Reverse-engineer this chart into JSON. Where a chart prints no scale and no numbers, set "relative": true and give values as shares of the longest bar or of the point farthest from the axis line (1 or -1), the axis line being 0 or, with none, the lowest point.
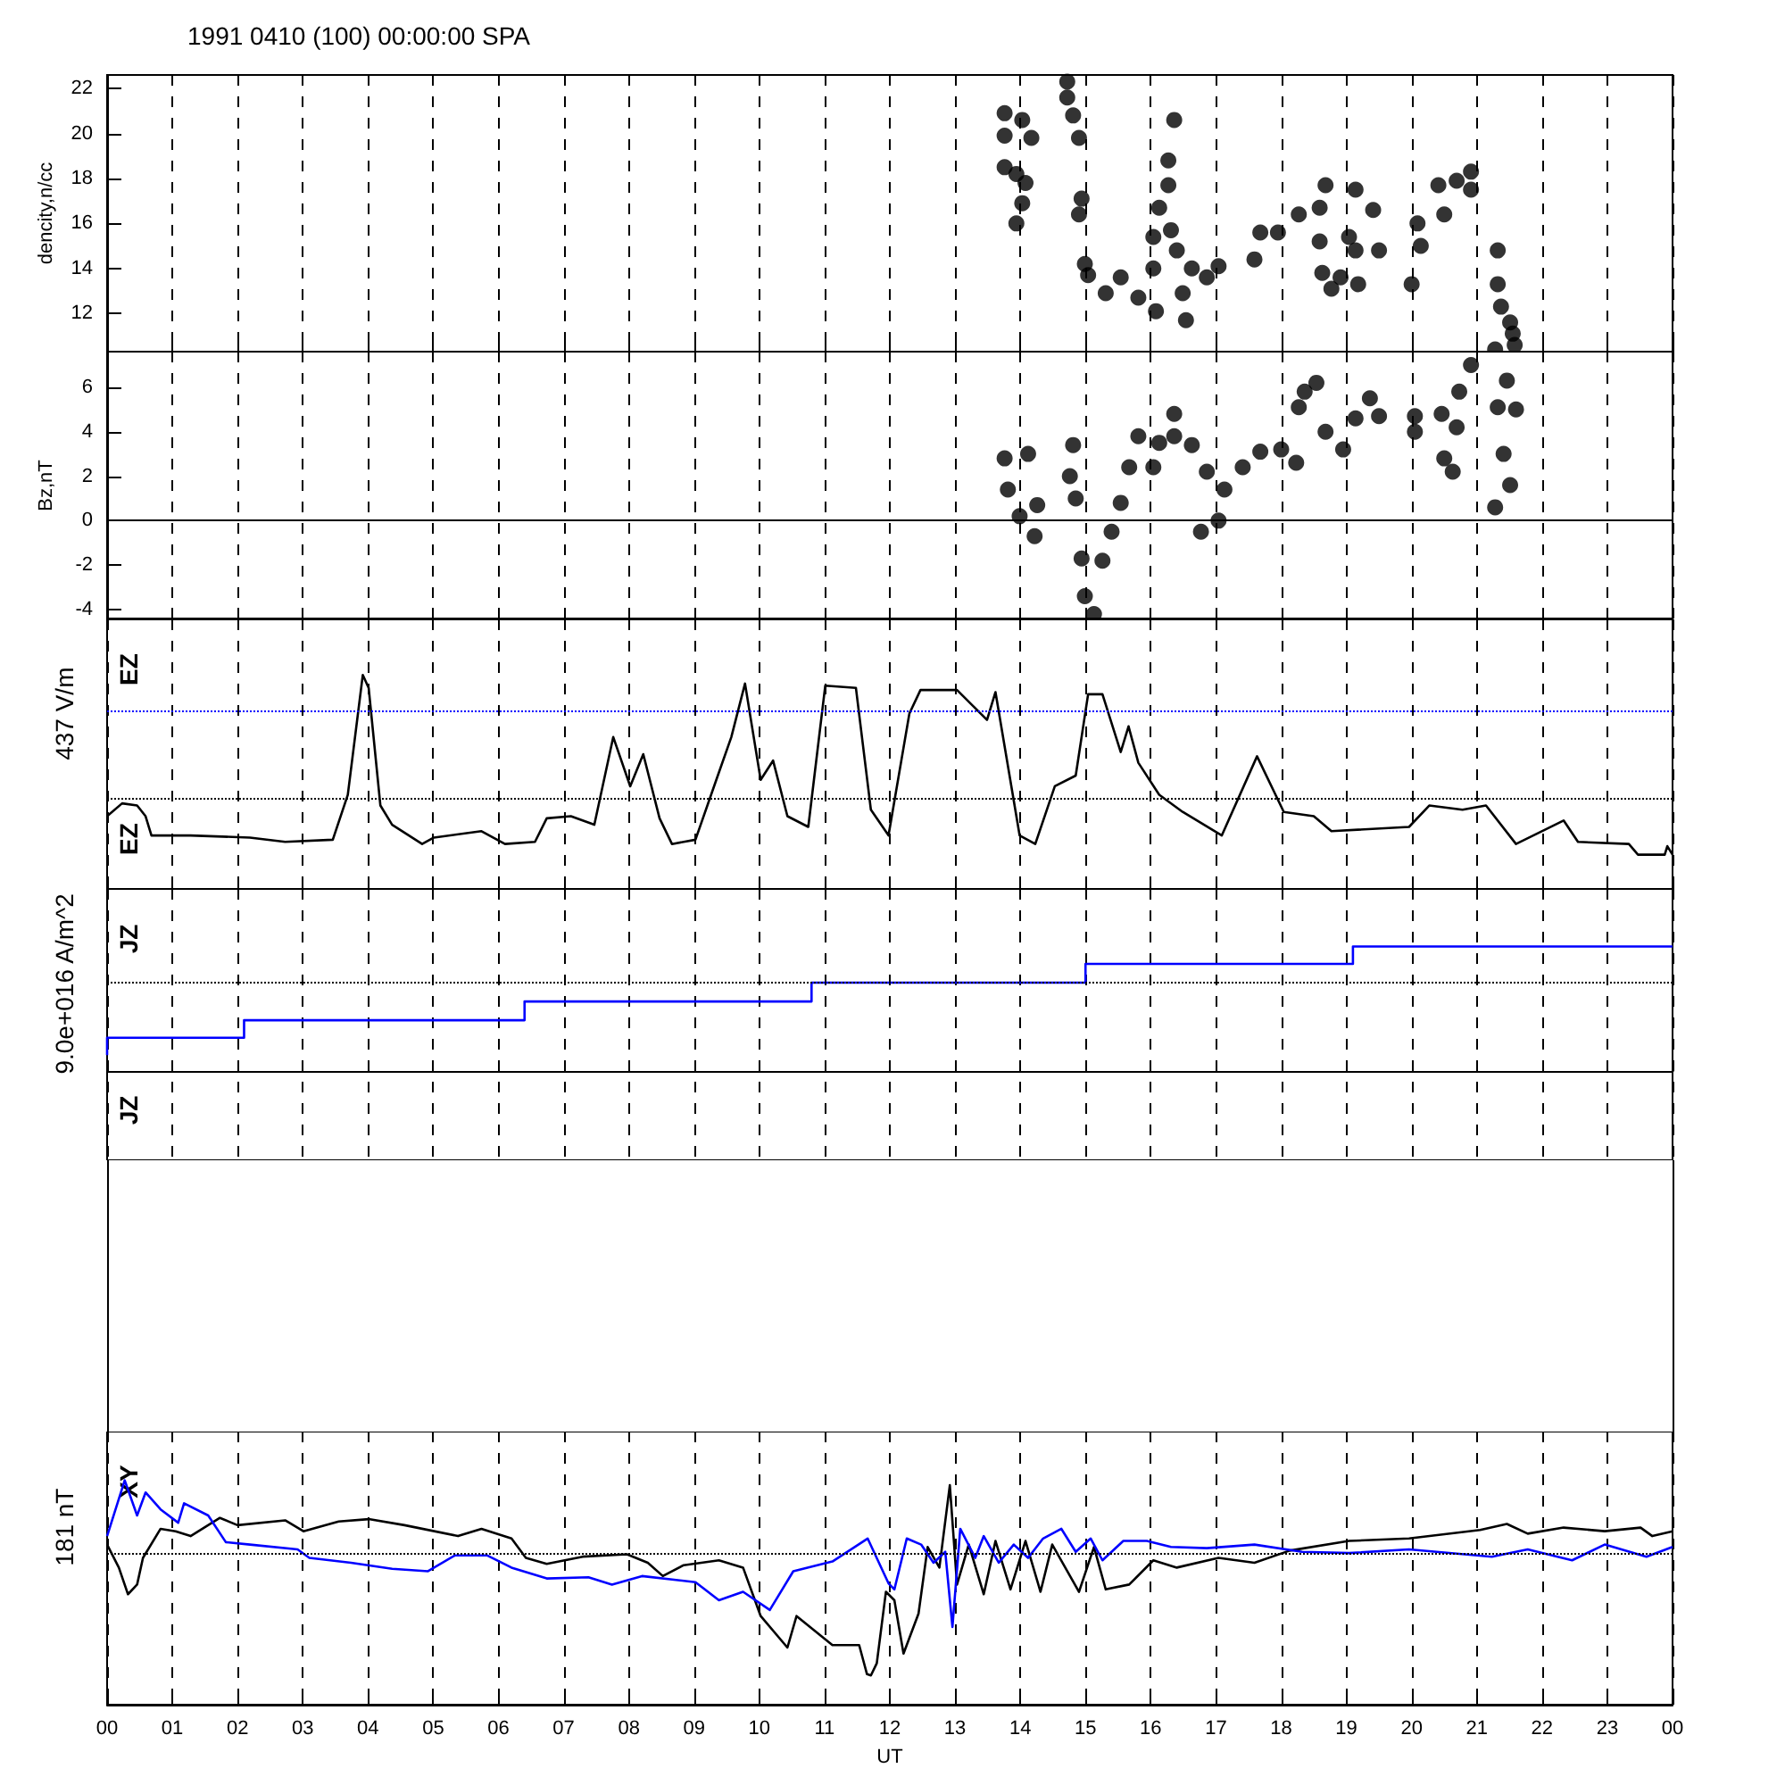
{
  "chart_data": [
    {
      "type": "scatter",
      "title": "1991 0410 (100) 00:00:00 SPA",
      "ylabel": "dencity,n/cc",
      "marker": "circle",
      "grid": "x",
      "tick_labels": "y",
      "xlim": [
        0,
        24
      ],
      "xticks": [
        {
          "value": 0,
          "label": null
        },
        {
          "value": 1,
          "label": null
        },
        {
          "value": 2,
          "label": null
        },
        {
          "value": 3,
          "label": null
        },
        {
          "value": 4,
          "label": null
        },
        {
          "value": 5,
          "label": null
        },
        {
          "value": 6,
          "label": null
        },
        {
          "value": 7,
          "label": null
        },
        {
          "value": 8,
          "label": null
        },
        {
          "value": 9,
          "label": null
        },
        {
          "value": 10,
          "label": null
        },
        {
          "value": 11,
          "label": null
        },
        {
          "value": 12,
          "label": null
        },
        {
          "value": 13,
          "label": null
        },
        {
          "value": 14,
          "label": null
        },
        {
          "value": 15,
          "label": null
        },
        {
          "value": 16,
          "label": null
        },
        {
          "value": 17,
          "label": null
        },
        {
          "value": 18,
          "label": null
        },
        {
          "value": 19,
          "label": null
        },
        {
          "value": 20,
          "label": null
        },
        {
          "value": 21,
          "label": null
        },
        {
          "value": 22,
          "label": null
        },
        {
          "value": 23,
          "label": null
        },
        {
          "value": 24,
          "label": null
        }
      ],
      "ylim": [
        10.3,
        22.6
      ],
      "yticks": [
        12,
        14,
        16,
        18,
        20,
        22
      ],
      "x": [
        13.76,
        14.03,
        14.17,
        13.76,
        13.76,
        13.94,
        14.08,
        14.03,
        13.94,
        14.72,
        14.72,
        14.81,
        14.9,
        14.94,
        14.9,
        14.99,
        15.04,
        15.31,
        15.54,
        15.81,
        16.08,
        16.04,
        16.04,
        16.13,
        16.27,
        16.27,
        16.36,
        16.31,
        16.4,
        16.63,
        16.49,
        16.54,
        16.86,
        17.04,
        17.59,
        17.68,
        17.95,
        18.27,
        18.68,
        18.59,
        18.59,
        18.63,
        18.77,
        18.91,
        19.14,
        19.04,
        19.14,
        19.18,
        19.41,
        19.5,
        20.0,
        20.09,
        20.14,
        20.41,
        20.5,
        20.69,
        20.91,
        20.91,
        21.32,
        21.32,
        21.37,
        21.51,
        21.55,
        21.28,
        21.58
      ],
      "series": [
        {
          "color": "#000000",
          "values": [
            20.9,
            20.6,
            19.8,
            19.9,
            18.5,
            18.2,
            17.8,
            16.9,
            16.0,
            22.3,
            21.6,
            20.8,
            19.8,
            17.1,
            16.4,
            14.2,
            13.7,
            12.9,
            13.6,
            12.7,
            12.1,
            14.0,
            15.4,
            16.7,
            17.7,
            18.8,
            20.6,
            15.7,
            14.8,
            14.0,
            12.9,
            11.7,
            13.6,
            14.1,
            14.4,
            15.6,
            15.6,
            16.4,
            17.7,
            16.7,
            15.2,
            13.8,
            13.1,
            13.6,
            17.5,
            15.4,
            14.8,
            13.3,
            16.6,
            14.8,
            13.3,
            16.0,
            15.0,
            17.7,
            16.4,
            17.9,
            18.3,
            17.5,
            14.8,
            13.3,
            12.3,
            11.6,
            11.1,
            10.4,
            10.6
          ]
        }
      ]
    },
    {
      "type": "scatter",
      "ylabel": "Bz,nT",
      "marker": "circle",
      "grid": "x",
      "tick_labels": "y",
      "xlim": [
        0,
        24
      ],
      "xticks": [
        {
          "value": 0,
          "label": null
        },
        {
          "value": 1,
          "label": null
        },
        {
          "value": 2,
          "label": null
        },
        {
          "value": 3,
          "label": null
        },
        {
          "value": 4,
          "label": null
        },
        {
          "value": 5,
          "label": null
        },
        {
          "value": 6,
          "label": null
        },
        {
          "value": 7,
          "label": null
        },
        {
          "value": 8,
          "label": null
        },
        {
          "value": 9,
          "label": null
        },
        {
          "value": 10,
          "label": null
        },
        {
          "value": 11,
          "label": null
        },
        {
          "value": 12,
          "label": null
        },
        {
          "value": 13,
          "label": null
        },
        {
          "value": 14,
          "label": null
        },
        {
          "value": 15,
          "label": null
        },
        {
          "value": 16,
          "label": null
        },
        {
          "value": 17,
          "label": null
        },
        {
          "value": 18,
          "label": null
        },
        {
          "value": 19,
          "label": null
        },
        {
          "value": 20,
          "label": null
        },
        {
          "value": 21,
          "label": null
        },
        {
          "value": 22,
          "label": null
        },
        {
          "value": 23,
          "label": null
        },
        {
          "value": 24,
          "label": null
        }
      ],
      "ylim": [
        -4.4,
        7.6
      ],
      "yticks": [
        -4,
        -2,
        0,
        2,
        4,
        6
      ],
      "ref_lines": [
        {
          "axis": "y",
          "value": 0,
          "line_style": "solid",
          "color": "#000000"
        }
      ],
      "x": [
        13.76,
        14.12,
        13.81,
        13.99,
        14.26,
        14.22,
        14.81,
        14.76,
        14.85,
        14.94,
        14.99,
        15.13,
        15.26,
        15.4,
        15.54,
        15.67,
        15.81,
        16.04,
        16.13,
        16.36,
        16.36,
        16.63,
        16.77,
        16.86,
        17.04,
        17.13,
        17.41,
        17.68,
        18.0,
        18.23,
        18.36,
        18.54,
        18.27,
        18.68,
        18.95,
        19.14,
        19.36,
        19.5,
        20.05,
        20.05,
        20.46,
        20.5,
        20.63,
        20.69,
        20.73,
        20.91,
        21.28,
        21.32,
        21.41,
        21.6,
        21.51,
        21.46
      ],
      "series": [
        {
          "color": "#000000",
          "values": [
            2.8,
            3.0,
            1.4,
            0.2,
            0.7,
            -0.7,
            3.4,
            2.0,
            1.0,
            -1.7,
            -3.4,
            -4.2,
            -1.8,
            -0.5,
            0.8,
            2.4,
            3.8,
            2.4,
            3.5,
            4.8,
            3.8,
            3.4,
            -0.5,
            2.2,
            0.0,
            1.4,
            2.4,
            3.1,
            3.2,
            2.6,
            5.8,
            6.2,
            5.1,
            4.0,
            3.2,
            4.6,
            5.5,
            4.7,
            4.0,
            4.7,
            4.8,
            2.8,
            2.2,
            4.2,
            5.8,
            7.0,
            0.6,
            5.1,
            3.0,
            5.0,
            1.6,
            6.3
          ]
        }
      ]
    },
    {
      "type": "line",
      "relative": true,
      "ylabel": "EZ",
      "annotations": [
        "437 V/m",
        "EZ"
      ],
      "grid": "x",
      "tick_labels": false,
      "xlim": [
        0,
        24
      ],
      "xticks": [
        {
          "value": 0,
          "label": null
        },
        {
          "value": 1,
          "label": null
        },
        {
          "value": 2,
          "label": null
        },
        {
          "value": 3,
          "label": null
        },
        {
          "value": 4,
          "label": null
        },
        {
          "value": 5,
          "label": null
        },
        {
          "value": 6,
          "label": null
        },
        {
          "value": 7,
          "label": null
        },
        {
          "value": 8,
          "label": null
        },
        {
          "value": 9,
          "label": null
        },
        {
          "value": 10,
          "label": null
        },
        {
          "value": 11,
          "label": null
        },
        {
          "value": 12,
          "label": null
        },
        {
          "value": 13,
          "label": null
        },
        {
          "value": 14,
          "label": null
        },
        {
          "value": 15,
          "label": null
        },
        {
          "value": 16,
          "label": null
        },
        {
          "value": 17,
          "label": null
        },
        {
          "value": 18,
          "label": null
        },
        {
          "value": 19,
          "label": null
        },
        {
          "value": 20,
          "label": null
        },
        {
          "value": 21,
          "label": null
        },
        {
          "value": 22,
          "label": null
        },
        {
          "value": 23,
          "label": null
        },
        {
          "value": 24,
          "label": null
        }
      ],
      "ref_lines": [
        {
          "axis": "y",
          "value": 0.83,
          "line_style": "dotted",
          "color": "#0000ff"
        },
        {
          "axis": "y",
          "value": 0.42,
          "line_style": "dotted",
          "color": "#000000"
        }
      ],
      "x": [
        0,
        0.23,
        0.46,
        0.59,
        0.68,
        1.28,
        2.19,
        2.73,
        3.46,
        3.69,
        3.92,
        4.01,
        4.19,
        4.37,
        4.83,
        5.01,
        5.74,
        6.1,
        6.56,
        6.74,
        7.11,
        7.47,
        7.76,
        8.02,
        8.22,
        8.47,
        8.66,
        9.02,
        9.34,
        9.57,
        9.78,
        10.02,
        10.21,
        10.43,
        10.75,
        11.01,
        11.48,
        11.71,
        11.98,
        12.3,
        12.47,
        13.03,
        13.49,
        13.62,
        13.99,
        14.23,
        14.53,
        14.85,
        15.04,
        15.26,
        15.54,
        15.66,
        15.81,
        16.13,
        16.49,
        17.09,
        17.63,
        18.04,
        18.5,
        18.77,
        19.96,
        20.27,
        20.78,
        21.14,
        21.6,
        22.33,
        22.55,
        23.33,
        23.47,
        23.88,
        23.92,
        24.0
      ],
      "series": [
        {
          "color": "#000000",
          "values": [
            0.34,
            0.4,
            0.39,
            0.34,
            0.25,
            0.25,
            0.24,
            0.22,
            0.23,
            0.44,
            1.0,
            0.94,
            0.39,
            0.3,
            0.21,
            0.24,
            0.27,
            0.21,
            0.22,
            0.33,
            0.34,
            0.3,
            0.71,
            0.48,
            0.63,
            0.33,
            0.21,
            0.23,
            0.51,
            0.71,
            0.96,
            0.51,
            0.6,
            0.34,
            0.29,
            0.95,
            0.94,
            0.37,
            0.25,
            0.82,
            0.93,
            0.93,
            0.79,
            0.92,
            0.25,
            0.21,
            0.48,
            0.53,
            0.91,
            0.91,
            0.64,
            0.76,
            0.59,
            0.44,
            0.36,
            0.25,
            0.62,
            0.36,
            0.34,
            0.27,
            0.29,
            0.39,
            0.37,
            0.39,
            0.21,
            0.32,
            0.22,
            0.21,
            0.16,
            0.16,
            0.2,
            0.16
          ]
        }
      ]
    },
    {
      "type": "step",
      "relative": true,
      "ylabel": "JZ",
      "annotations": [
        "9.0e+016 A/m^2",
        "JZ"
      ],
      "grid": "x",
      "tick_labels": false,
      "xlim": [
        0,
        24
      ],
      "xticks": [
        {
          "value": 0,
          "label": null
        },
        {
          "value": 1,
          "label": null
        },
        {
          "value": 2,
          "label": null
        },
        {
          "value": 3,
          "label": null
        },
        {
          "value": 4,
          "label": null
        },
        {
          "value": 5,
          "label": null
        },
        {
          "value": 6,
          "label": null
        },
        {
          "value": 7,
          "label": null
        },
        {
          "value": 8,
          "label": null
        },
        {
          "value": 9,
          "label": null
        },
        {
          "value": 10,
          "label": null
        },
        {
          "value": 11,
          "label": null
        },
        {
          "value": 12,
          "label": null
        },
        {
          "value": 13,
          "label": null
        },
        {
          "value": 14,
          "label": null
        },
        {
          "value": 15,
          "label": null
        },
        {
          "value": 16,
          "label": null
        },
        {
          "value": 17,
          "label": null
        },
        {
          "value": 18,
          "label": null
        },
        {
          "value": 19,
          "label": null
        },
        {
          "value": 20,
          "label": null
        },
        {
          "value": 21,
          "label": null
        },
        {
          "value": 22,
          "label": null
        },
        {
          "value": 23,
          "label": null
        },
        {
          "value": 24,
          "label": null
        }
      ],
      "ref_lines": [
        {
          "axis": "y",
          "value": 0.71,
          "line_style": "dotted",
          "color": "#000000"
        }
      ],
      "x": [
        0,
        2.1,
        6.4,
        10.8,
        15.0,
        19.1,
        23.5,
        24.0
      ],
      "series": [
        {
          "color": "#0000ff",
          "values": [
            0.13,
            0.27,
            0.41,
            0.56,
            0.71,
            0.86,
            1.0,
            1.0
          ]
        }
      ]
    },
    {
      "type": "line",
      "relative": true,
      "ylabel": "XY",
      "annotations": [
        "181 nT"
      ],
      "xlabel": "UT",
      "grid": "x",
      "tick_labels": "x",
      "xlim": [
        0,
        24
      ],
      "xticks": [
        {
          "value": 0,
          "label": "00"
        },
        {
          "value": 1,
          "label": "01"
        },
        {
          "value": 2,
          "label": "02"
        },
        {
          "value": 3,
          "label": "03"
        },
        {
          "value": 4,
          "label": "04"
        },
        {
          "value": 5,
          "label": "05"
        },
        {
          "value": 6,
          "label": "06"
        },
        {
          "value": 7,
          "label": "07"
        },
        {
          "value": 8,
          "label": "08"
        },
        {
          "value": 9,
          "label": "09"
        },
        {
          "value": 10,
          "label": "10"
        },
        {
          "value": 11,
          "label": "11"
        },
        {
          "value": 12,
          "label": "12"
        },
        {
          "value": 13,
          "label": "13"
        },
        {
          "value": 14,
          "label": "14"
        },
        {
          "value": 15,
          "label": "15"
        },
        {
          "value": 16,
          "label": "16"
        },
        {
          "value": 17,
          "label": "17"
        },
        {
          "value": 18,
          "label": "18"
        },
        {
          "value": 19,
          "label": "19"
        },
        {
          "value": 20,
          "label": "20"
        },
        {
          "value": 21,
          "label": "21"
        },
        {
          "value": 22,
          "label": "22"
        },
        {
          "value": 23,
          "label": "23"
        },
        {
          "value": 24,
          "label": "00"
        }
      ],
      "ref_lines": [
        {
          "axis": "y",
          "value": 0,
          "line_style": "dotted",
          "color": "#000000"
        }
      ],
      "series": [
        {
          "color": "#000000",
          "x": [
            0,
            0.18,
            0.32,
            0.46,
            0.55,
            0.82,
            1.05,
            1.28,
            1.73,
            2.0,
            2.73,
            3.01,
            3.55,
            4.01,
            4.56,
            5.38,
            5.74,
            6.2,
            6.42,
            6.74,
            7.29,
            7.97,
            8.29,
            8.52,
            8.84,
            9.38,
            9.75,
            10.02,
            10.43,
            10.57,
            11.12,
            11.53,
            11.65,
            11.71,
            11.8,
            11.94,
            12.07,
            12.21,
            12.44,
            12.58,
            12.76,
            12.92,
            13.03,
            13.21,
            13.44,
            13.62,
            13.85,
            14.08,
            14.31,
            14.49,
            14.9,
            15.13,
            15.31,
            15.67,
            16.04,
            16.4,
            17.04,
            17.59,
            18.13,
            19.04,
            19.96,
            21.05,
            21.46,
            21.78,
            22.33,
            22.96,
            23.51,
            23.69,
            24.0
          ],
          "values": [
            0.08,
            -0.11,
            -0.33,
            -0.25,
            -0.03,
            0.21,
            0.19,
            0.15,
            0.3,
            0.24,
            0.28,
            0.19,
            0.27,
            0.29,
            0.24,
            0.15,
            0.21,
            0.13,
            -0.03,
            -0.08,
            -0.02,
            0.0,
            -0.07,
            -0.18,
            -0.09,
            -0.05,
            -0.11,
            -0.51,
            -0.77,
            -0.51,
            -0.75,
            -0.75,
            -0.99,
            -1.0,
            -0.9,
            -0.31,
            -0.38,
            -0.82,
            -0.49,
            0.06,
            -0.11,
            0.57,
            -0.25,
            0.08,
            -0.33,
            0.11,
            -0.29,
            0.11,
            -0.31,
            0.08,
            -0.31,
            0.06,
            -0.29,
            -0.25,
            -0.05,
            -0.11,
            -0.03,
            -0.07,
            0.03,
            0.11,
            0.13,
            0.2,
            0.25,
            0.17,
            0.22,
            0.19,
            0.22,
            0.15,
            0.19
          ]
        },
        {
          "color": "#0000ff",
          "x": [
            0,
            0.27,
            0.46,
            0.59,
            0.82,
            1.09,
            1.18,
            1.55,
            1.82,
            2.19,
            2.92,
            3.1,
            3.74,
            4.37,
            4.92,
            5.33,
            5.83,
            6.2,
            6.74,
            7.38,
            7.74,
            8.2,
            9.02,
            9.38,
            9.75,
            10.16,
            10.52,
            11.12,
            11.66,
            11.98,
            12.07,
            12.26,
            12.48,
            12.67,
            12.85,
            12.96,
            13.08,
            13.31,
            13.44,
            13.67,
            13.9,
            14.12,
            14.35,
            14.63,
            14.85,
            15.08,
            15.26,
            15.58,
            15.94,
            16.31,
            16.86,
            17.59,
            18.32,
            19.04,
            19.96,
            21.23,
            21.78,
            22.46,
            22.96,
            23.6,
            24.0
          ],
          "values": [
            0.15,
            0.61,
            0.32,
            0.51,
            0.37,
            0.26,
            0.42,
            0.32,
            0.1,
            0.08,
            0.04,
            -0.03,
            -0.07,
            -0.12,
            -0.14,
            -0.01,
            -0.01,
            -0.11,
            -0.2,
            -0.19,
            -0.25,
            -0.18,
            -0.23,
            -0.38,
            -0.31,
            -0.46,
            -0.14,
            -0.06,
            0.13,
            -0.24,
            -0.29,
            0.13,
            0.08,
            -0.07,
            0.02,
            -0.6,
            0.21,
            -0.03,
            0.15,
            -0.07,
            0.08,
            -0.03,
            0.13,
            0.21,
            0.02,
            0.13,
            -0.05,
            0.11,
            0.11,
            0.06,
            0.05,
            0.08,
            0.02,
            0.01,
            0.04,
            -0.02,
            0.04,
            -0.05,
            0.08,
            -0.02,
            0.06
          ]
        }
      ]
    }
  ]
}
